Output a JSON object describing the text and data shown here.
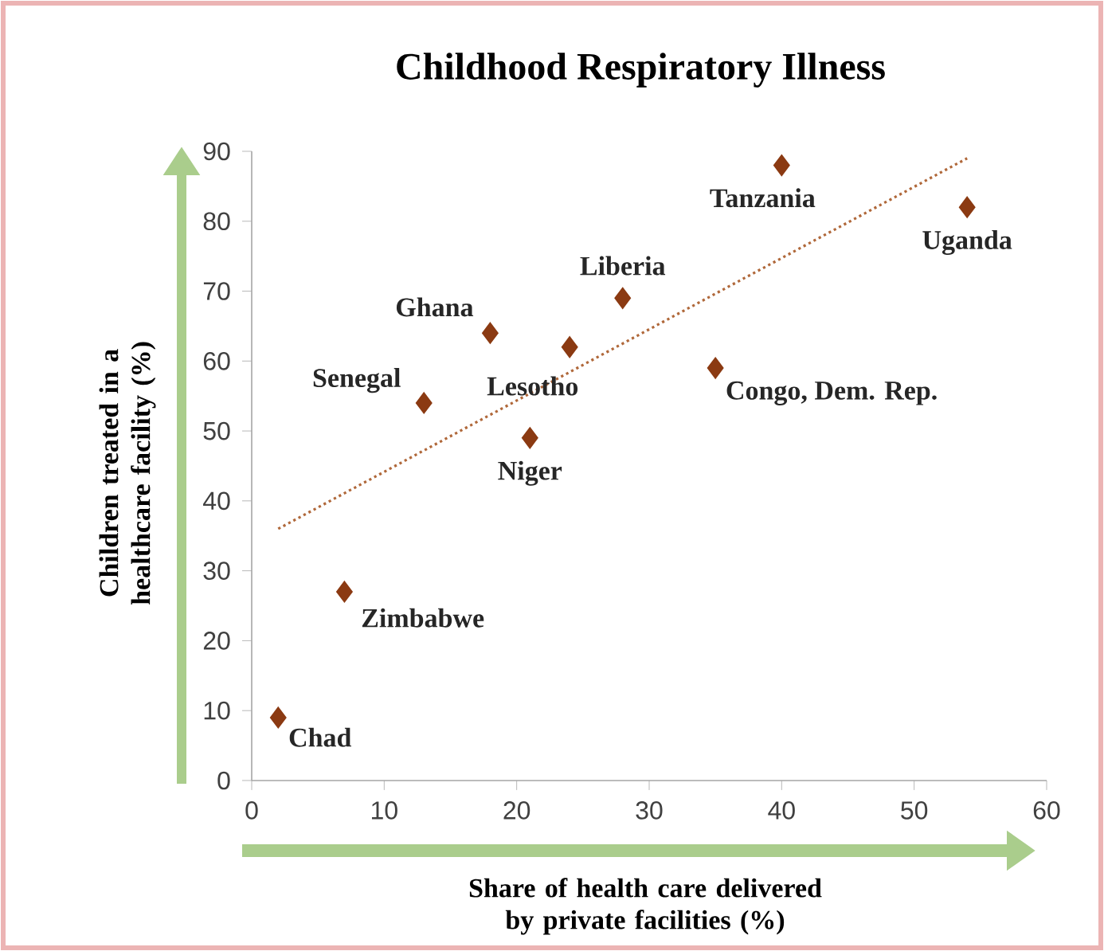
{
  "chart_data": {
    "type": "scatter",
    "title": "Childhood Respiratory Illness",
    "xlabel": "Share of health care delivered by private facilities (%)",
    "ylabel": "Children treated in a healthcare facility (%)",
    "series": [
      {
        "color": "#8b3a12",
        "marker": "diamond",
        "x": [
          2,
          7,
          13,
          18,
          21,
          24,
          28,
          35,
          40,
          54
        ],
        "values": [
          9,
          27,
          54,
          64,
          49,
          62,
          69,
          59,
          88,
          82
        ]
      },
      {
        "type": "line",
        "color": "#b0683a",
        "line_style": "dotted",
        "marker": "none",
        "x": [
          2,
          54
        ],
        "values": [
          36,
          89
        ]
      }
    ],
    "annotations": [
      {
        "text": "Chad",
        "x": 2,
        "y": 9
      },
      {
        "text": "Zimbabwe",
        "x": 7,
        "y": 27
      },
      {
        "text": "Senegal",
        "x": 13,
        "y": 54
      },
      {
        "text": "Ghana",
        "x": 18,
        "y": 64
      },
      {
        "text": "Niger",
        "x": 21,
        "y": 49
      },
      {
        "text": "Lesotho",
        "x": 24,
        "y": 62
      },
      {
        "text": "Liberia",
        "x": 28,
        "y": 69
      },
      {
        "text": "Congo, Dem. Rep.",
        "x": 35,
        "y": 59
      },
      {
        "text": "Tanzania",
        "x": 40,
        "y": 88
      },
      {
        "text": "Uganda",
        "x": 54,
        "y": 82
      }
    ],
    "xlim": [
      0,
      60
    ],
    "ylim": [
      0,
      90
    ],
    "xticks": [
      0,
      10,
      20,
      30,
      40,
      50,
      60
    ],
    "yticks": [
      0,
      10,
      20,
      30,
      40,
      50,
      60,
      70,
      80,
      90
    ],
    "grid": false
  }
}
